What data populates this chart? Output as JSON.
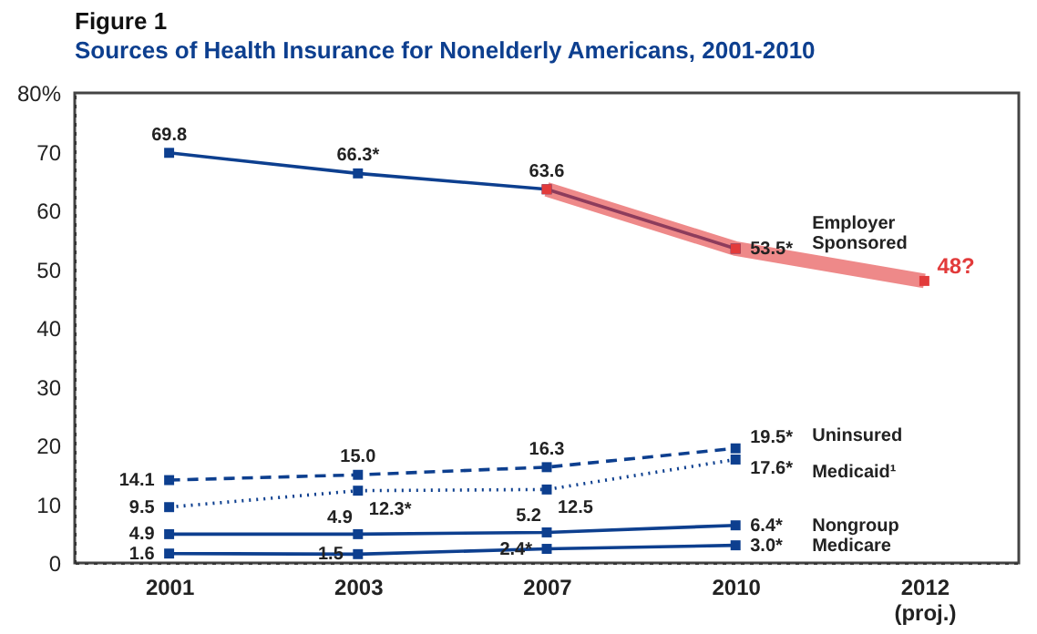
{
  "chart_data": {
    "type": "line",
    "title": "Figure 1",
    "subtitle": "Sources of Health Insurance for Nonelderly Americans, 2001-2010",
    "categories": [
      "2001",
      "2003",
      "2007",
      "2010",
      "2012 (proj.)"
    ],
    "ylim": [
      0,
      80
    ],
    "yticks": [
      0,
      10,
      20,
      30,
      40,
      50,
      60,
      70,
      {
        "value": 80,
        "label": "80%"
      }
    ],
    "grid": false,
    "legend": false,
    "marker": "square",
    "series": [
      {
        "name": "Employer Sponsored",
        "color": "#0d3f8f",
        "line_style": "solid",
        "values": [
          69.8,
          66.3,
          63.6,
          53.5,
          null
        ],
        "value_labels": [
          "69.8",
          "66.3*",
          "63.6",
          "53.5*",
          null
        ]
      },
      {
        "name": "Uninsured",
        "color": "#0d3f8f",
        "line_style": "dashed",
        "values": [
          14.1,
          15.0,
          16.3,
          19.5,
          null
        ],
        "value_labels": [
          "14.1",
          "15.0",
          "16.3",
          "19.5*",
          null
        ]
      },
      {
        "name": "Medicaid¹",
        "color": "#0d3f8f",
        "line_style": "dotted",
        "values": [
          9.5,
          12.3,
          12.5,
          17.6,
          null
        ],
        "value_labels": [
          "9.5",
          "12.3*",
          "12.5",
          "17.6*",
          null
        ]
      },
      {
        "name": "Nongroup",
        "color": "#0d3f8f",
        "line_style": "solid",
        "values": [
          4.9,
          4.9,
          5.2,
          6.4,
          null
        ],
        "value_labels": [
          "4.9",
          "4.9",
          "5.2",
          "6.4*",
          null
        ]
      },
      {
        "name": "Medicare",
        "color": "#0d3f8f",
        "line_style": "solid",
        "values": [
          1.6,
          1.5,
          2.4,
          3.0,
          null
        ],
        "value_labels": [
          "1.6",
          "1.5",
          "2.4*",
          "3.0*",
          null
        ]
      },
      {
        "color": "#e23b3b",
        "line_style": "solid",
        "values": [
          null,
          null,
          63.6,
          53.5,
          48
        ],
        "value_labels": [
          null,
          null,
          null,
          null,
          "48?"
        ]
      }
    ]
  }
}
